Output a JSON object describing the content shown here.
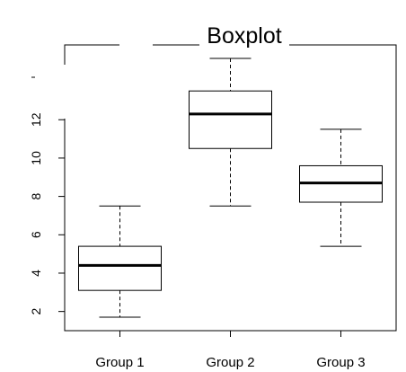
{
  "chart_data": {
    "type": "boxplot",
    "title": "Boxplot",
    "xlabel": "",
    "ylabel": "",
    "categories": [
      "Group 1",
      "Group 2",
      "Group 3"
    ],
    "boxes": [
      {
        "category": "Group 1",
        "min": 1.7,
        "q1": 3.1,
        "median": 4.4,
        "q3": 5.4,
        "max": 7.5
      },
      {
        "category": "Group 2",
        "min": 7.5,
        "q1": 10.5,
        "median": 12.3,
        "q3": 13.5,
        "max": 15.2
      },
      {
        "category": "Group 3",
        "min": 5.4,
        "q1": 7.7,
        "median": 8.7,
        "q3": 9.6,
        "max": 11.5
      }
    ],
    "y_ticks": [
      2,
      4,
      6,
      8,
      10,
      12
    ],
    "ylim": [
      1.0,
      15.9
    ],
    "grid": false,
    "colors": {
      "box_fill": "#ffffff",
      "line": "#000000",
      "background": "#ffffff"
    }
  }
}
